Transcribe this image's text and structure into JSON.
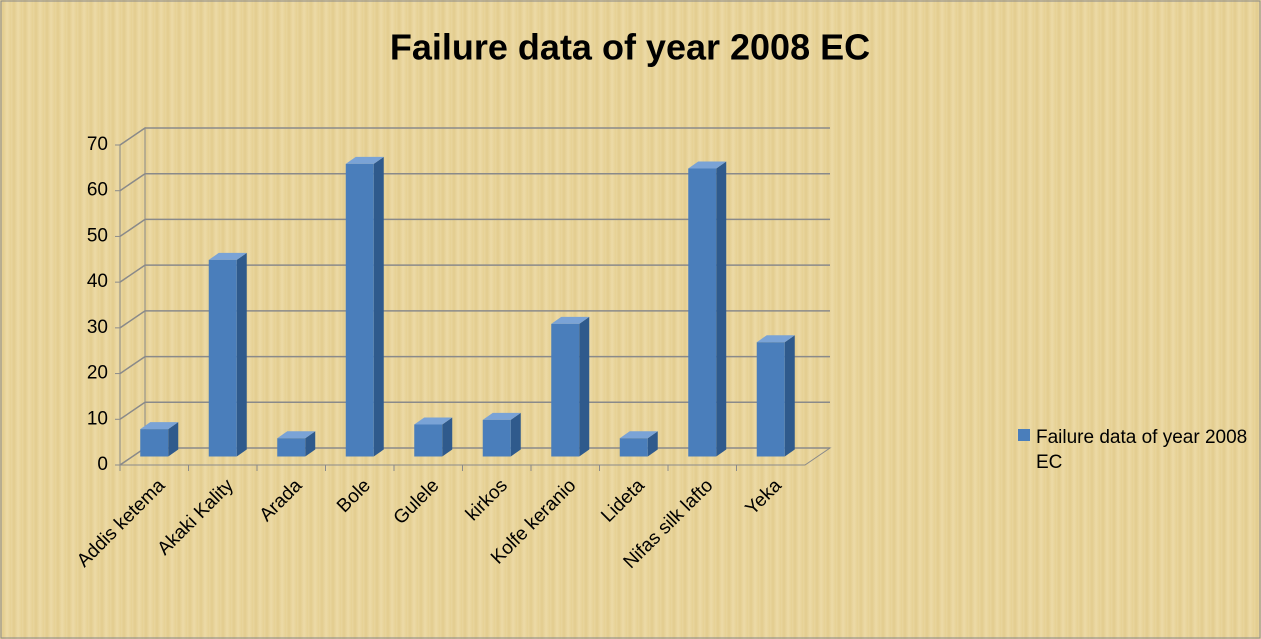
{
  "chart_data": {
    "type": "bar",
    "title": "Failure data of year 2008 EC",
    "categories": [
      "Addis ketema",
      "Akaki Kality",
      "Arada",
      "Bole",
      "Gulele",
      "kirkos",
      "Kolfe keranio",
      "Lideta",
      "Nifas silk lafto",
      "Yeka"
    ],
    "series": [
      {
        "name": "Failure data of year 2008 EC",
        "color": "#4a7ebb",
        "values": [
          6,
          43,
          4,
          64,
          7,
          8,
          29,
          4,
          63,
          25
        ]
      }
    ],
    "ylim": [
      0,
      70
    ],
    "yticks": [
      0,
      10,
      20,
      30,
      40,
      50,
      60,
      70
    ],
    "grid": true,
    "legend": "right"
  }
}
